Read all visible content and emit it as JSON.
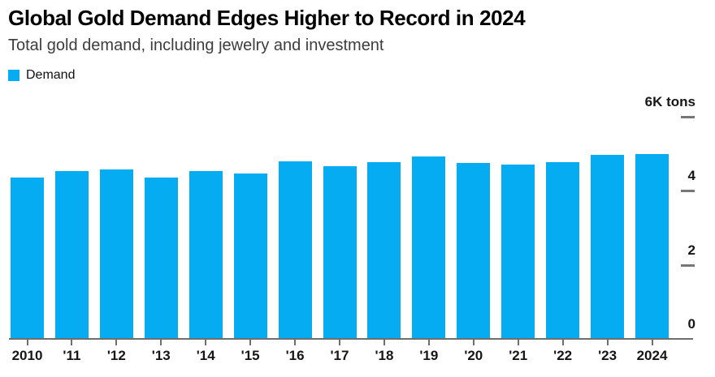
{
  "header": {
    "title": "Global Gold Demand Edges Higher to Record in 2024",
    "subtitle": "Total gold demand, including jewelry and investment"
  },
  "legend": {
    "items": [
      {
        "label": "Demand",
        "color": "#05acf2"
      }
    ]
  },
  "chart_data": {
    "type": "bar",
    "title": "Global Gold Demand Edges Higher to Record in 2024",
    "subtitle": "Total gold demand, including jewelry and investment",
    "series_name": "Demand",
    "categories": [
      "2010",
      "'11",
      "'12",
      "'13",
      "'14",
      "'15",
      "'16",
      "'17",
      "'18",
      "'19",
      "'20",
      "'21",
      "'22",
      "'23",
      "2024"
    ],
    "values": [
      4.32,
      4.51,
      4.55,
      4.33,
      4.5,
      4.44,
      4.77,
      4.64,
      4.75,
      4.9,
      4.72,
      4.68,
      4.75,
      4.94,
      4.97
    ],
    "unit": "K tons",
    "ylabel": "6K tons",
    "ylim": [
      0,
      6
    ],
    "y_ticks": [
      {
        "value": 6,
        "label": "6K tons",
        "dash": true
      },
      {
        "value": 4,
        "label": "4",
        "dash": true
      },
      {
        "value": 2,
        "label": "2",
        "dash": true
      },
      {
        "value": 0,
        "label": "0",
        "dash": false
      }
    ],
    "grid": false,
    "legend_position": "top-left",
    "axis_side": "right",
    "bar_color": "#05acf2"
  }
}
